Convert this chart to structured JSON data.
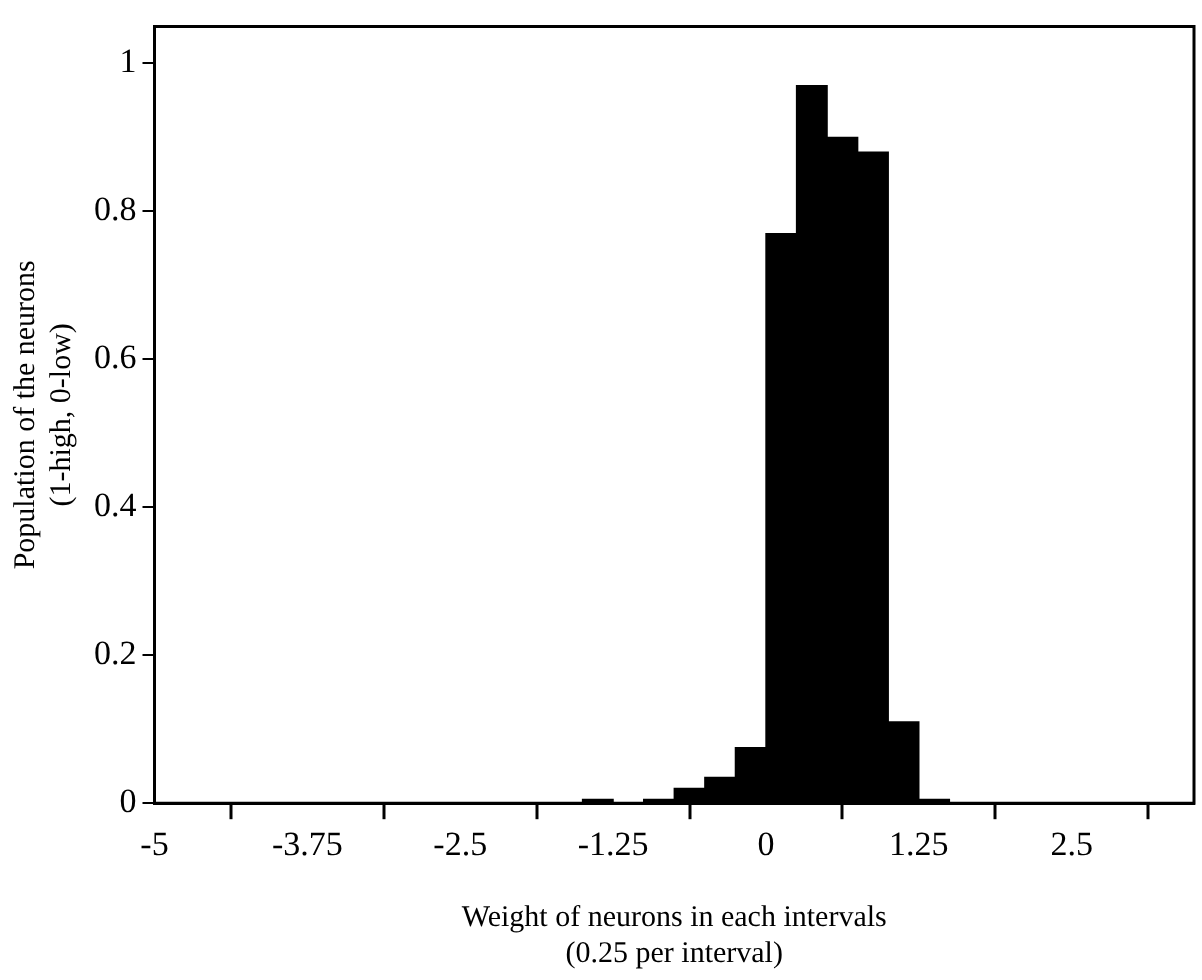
{
  "chart_data": {
    "type": "histogram",
    "xlabel": "Weight of neurons in each intervals\n(0.25 per interval)",
    "ylabel": "Population of the neurons\n(1-high, 0-low)",
    "bins": [
      -1.5,
      -1.25,
      -1,
      -0.75,
      -0.5,
      -0.25,
      0,
      0.25,
      0.5,
      0.75,
      1,
      1.25,
      1.5
    ],
    "values": [
      0.005,
      0,
      0.005,
      0.02,
      0.035,
      0.075,
      0.77,
      0.97,
      0.9,
      0.88,
      0.11,
      0.005
    ],
    "color": "#000000",
    "xlim": [
      -5,
      3.5
    ],
    "xticks": [
      -5,
      -3.75,
      -2.5,
      -1.25,
      0,
      1.25,
      2.5
    ],
    "ylim": [
      0,
      1.05
    ],
    "yticks": [
      0,
      0.2,
      0.4,
      0.6,
      0.8,
      1
    ],
    "grid": false,
    "legend": false
  }
}
